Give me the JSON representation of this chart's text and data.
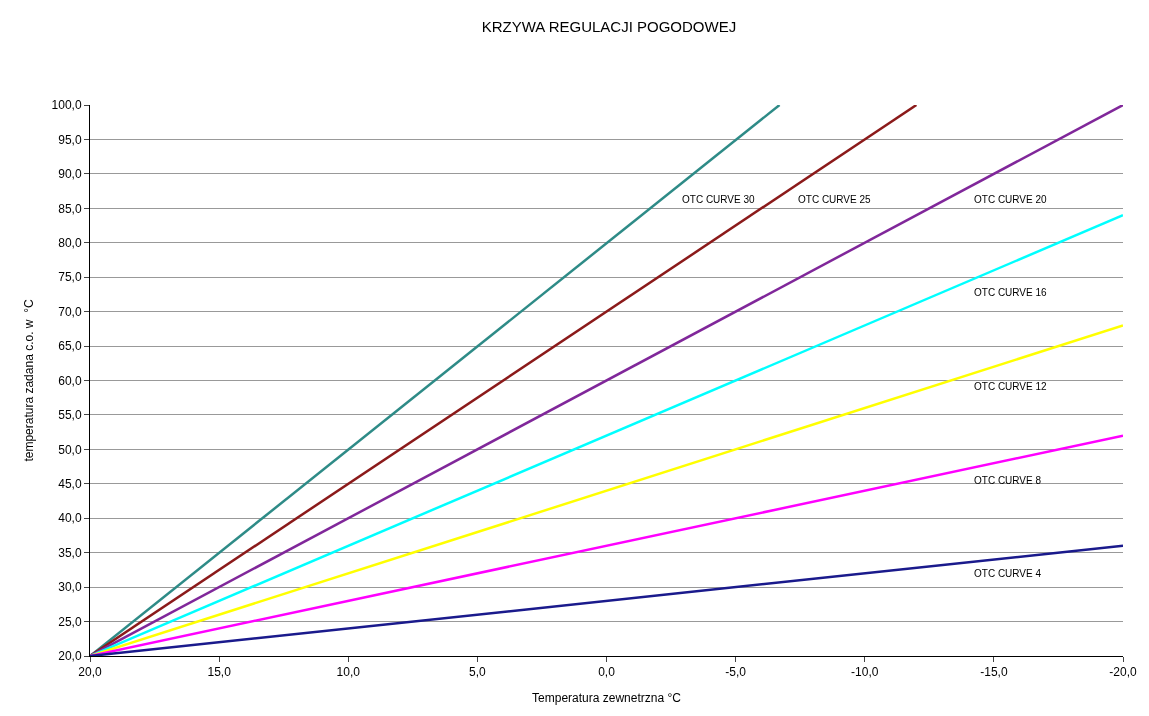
{
  "chart_data": {
    "type": "line",
    "title": "KRZYWA REGULACJI POGODOWEJ",
    "xlabel": "Temperatura zewnetrzna °C",
    "ylabel": "temperatura zadana c.o. w  °C",
    "series": [
      {
        "name": "OTC CURVE 30",
        "color": "#2e8b87",
        "x": [
          20,
          -6.7
        ],
        "values": [
          20,
          100
        ]
      },
      {
        "name": "OTC CURVE 25",
        "color": "#8b1a1a",
        "x": [
          20,
          -12
        ],
        "values": [
          20,
          100
        ]
      },
      {
        "name": "OTC CURVE 20",
        "color": "#80279a",
        "x": [
          20,
          -20
        ],
        "values": [
          20,
          100
        ]
      },
      {
        "name": "OTC CURVE 16",
        "color": "#00ffff",
        "x": [
          20,
          -20
        ],
        "values": [
          20,
          84
        ]
      },
      {
        "name": "OTC CURVE 12",
        "color": "#ffff00",
        "x": [
          20,
          -20
        ],
        "values": [
          20,
          68
        ]
      },
      {
        "name": "OTC CURVE 8",
        "color": "#ff00ff",
        "x": [
          20,
          -20
        ],
        "values": [
          20,
          52
        ]
      },
      {
        "name": "OTC CURVE 4",
        "color": "#1a1a8c",
        "x": [
          20,
          -20
        ],
        "values": [
          20,
          36
        ]
      }
    ],
    "xlim": [
      20,
      -20
    ],
    "xticks": [
      {
        "value": 20,
        "label": "20,0"
      },
      {
        "value": 15,
        "label": "15,0"
      },
      {
        "value": 10,
        "label": "10,0"
      },
      {
        "value": 5,
        "label": "5,0"
      },
      {
        "value": 0,
        "label": "0,0"
      },
      {
        "value": -5,
        "label": "-5,0"
      },
      {
        "value": -10,
        "label": "-10,0"
      },
      {
        "value": -15,
        "label": "-15,0"
      },
      {
        "value": -20,
        "label": "-20,0"
      }
    ],
    "ylim": [
      20,
      100
    ],
    "yticks": [
      {
        "value": 20,
        "label": "20,0"
      },
      {
        "value": 25,
        "label": "25,0"
      },
      {
        "value": 30,
        "label": "30,0"
      },
      {
        "value": 35,
        "label": "35,0"
      },
      {
        "value": 40,
        "label": "40,0"
      },
      {
        "value": 45,
        "label": "45,0"
      },
      {
        "value": 50,
        "label": "50,0"
      },
      {
        "value": 55,
        "label": "55,0"
      },
      {
        "value": 60,
        "label": "60,0"
      },
      {
        "value": 65,
        "label": "65,0"
      },
      {
        "value": 70,
        "label": "70,0"
      },
      {
        "value": 75,
        "label": "75,0"
      },
      {
        "value": 80,
        "label": "80,0"
      },
      {
        "value": 85,
        "label": "85,0"
      },
      {
        "value": 90,
        "label": "90,0"
      },
      {
        "value": 95,
        "label": "95,0"
      },
      {
        "value": 100,
        "label": "100,0"
      }
    ],
    "grid": "y",
    "legend": false,
    "marker": "none",
    "line_style": "solid"
  }
}
